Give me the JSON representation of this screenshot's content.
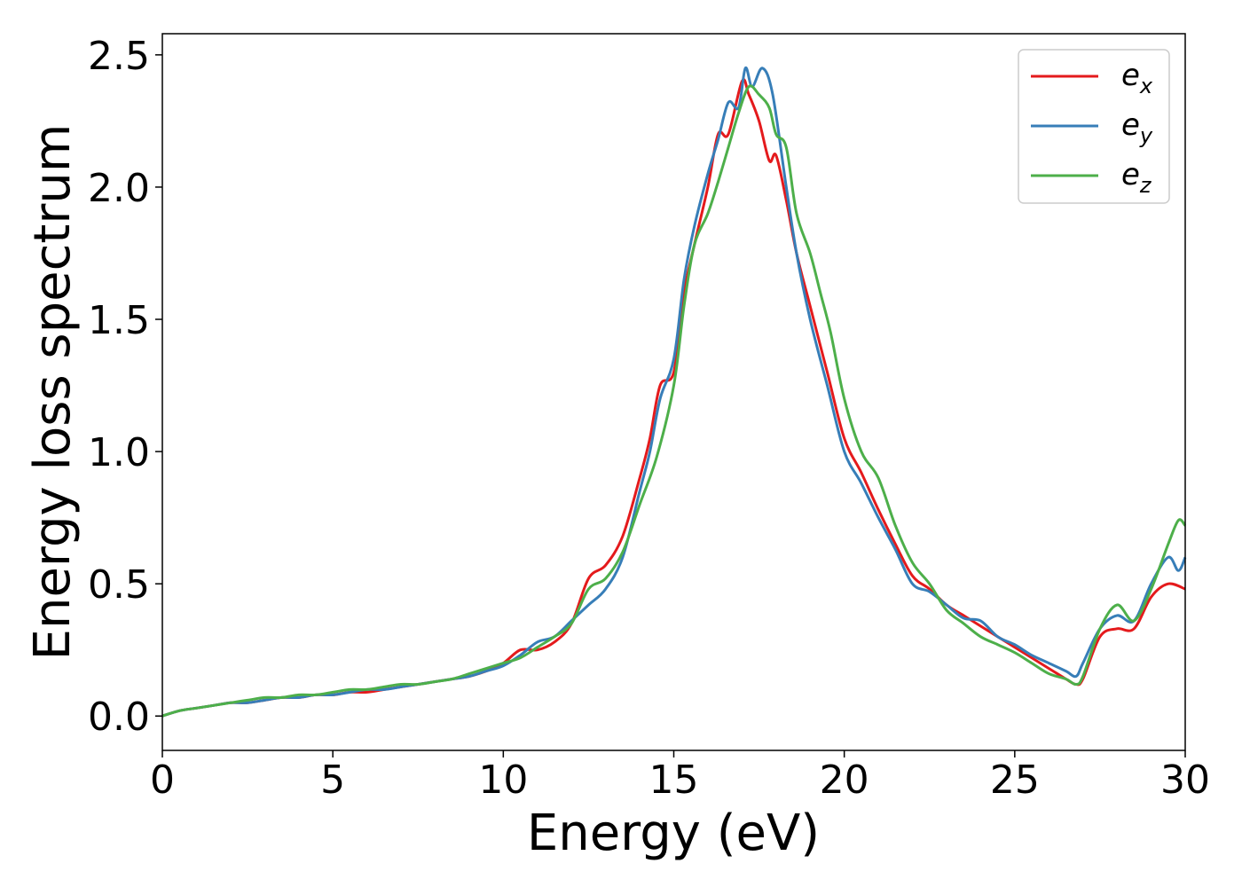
{
  "chart_data": {
    "type": "line",
    "title": "",
    "xlabel": "Energy (eV)",
    "ylabel": "Energy loss spectrum",
    "xlim": [
      0,
      30
    ],
    "ylim": [
      -0.13,
      2.58
    ],
    "xticks": [
      "0",
      "5",
      "10",
      "15",
      "20",
      "25",
      "30"
    ],
    "yticks": [
      "0.0",
      "0.5",
      "1.0",
      "1.5",
      "2.0",
      "2.5"
    ],
    "grid": false,
    "legend_position": "top-right",
    "series": [
      {
        "name": "e",
        "subscript": "x",
        "color": "#e41a1c",
        "x": [
          0,
          0.5,
          1,
          1.5,
          2,
          2.5,
          3,
          3.5,
          4,
          4.5,
          5,
          5.5,
          6,
          6.5,
          7,
          7.5,
          8,
          8.5,
          9,
          9.5,
          10,
          10.5,
          11,
          11.5,
          12,
          12.5,
          13,
          13.5,
          14,
          14.3,
          14.6,
          15,
          15.3,
          15.6,
          16,
          16.3,
          16.6,
          17,
          17.2,
          17.5,
          17.8,
          18,
          18.3,
          18.6,
          19,
          19.5,
          20,
          20.5,
          21,
          21.5,
          22,
          22.5,
          23,
          23.5,
          24,
          24.5,
          25,
          25.5,
          26,
          26.5,
          26.8,
          27,
          27.5,
          28,
          28.5,
          29,
          29.5,
          30
        ],
        "y": [
          0,
          0.02,
          0.03,
          0.04,
          0.05,
          0.05,
          0.06,
          0.07,
          0.07,
          0.08,
          0.08,
          0.09,
          0.09,
          0.1,
          0.11,
          0.12,
          0.13,
          0.14,
          0.15,
          0.17,
          0.2,
          0.25,
          0.25,
          0.28,
          0.35,
          0.52,
          0.57,
          0.68,
          0.9,
          1.05,
          1.25,
          1.3,
          1.6,
          1.78,
          2.0,
          2.2,
          2.2,
          2.4,
          2.35,
          2.25,
          2.1,
          2.12,
          1.95,
          1.75,
          1.55,
          1.3,
          1.05,
          0.92,
          0.78,
          0.65,
          0.53,
          0.48,
          0.42,
          0.38,
          0.34,
          0.3,
          0.26,
          0.22,
          0.18,
          0.14,
          0.12,
          0.14,
          0.3,
          0.33,
          0.33,
          0.45,
          0.5,
          0.48
        ]
      },
      {
        "name": "e",
        "subscript": "y",
        "color": "#377eb8",
        "x": [
          0,
          0.5,
          1,
          1.5,
          2,
          2.5,
          3,
          3.5,
          4,
          4.5,
          5,
          5.5,
          6,
          6.5,
          7,
          7.5,
          8,
          8.5,
          9,
          9.5,
          10,
          10.5,
          11,
          11.5,
          12,
          12.5,
          13,
          13.5,
          14,
          14.3,
          14.6,
          15,
          15.3,
          15.6,
          16,
          16.3,
          16.6,
          16.9,
          17.1,
          17.3,
          17.6,
          17.9,
          18.3,
          18.6,
          19,
          19.5,
          20,
          20.5,
          21,
          21.5,
          22,
          22.5,
          23,
          23.5,
          24,
          24.5,
          25,
          25.5,
          26,
          26.5,
          26.8,
          27,
          27.5,
          28,
          28.5,
          29,
          29.5,
          29.8,
          30
        ],
        "y": [
          0,
          0.02,
          0.03,
          0.04,
          0.05,
          0.05,
          0.06,
          0.07,
          0.07,
          0.08,
          0.08,
          0.09,
          0.1,
          0.1,
          0.11,
          0.12,
          0.13,
          0.14,
          0.15,
          0.17,
          0.19,
          0.23,
          0.28,
          0.3,
          0.36,
          0.42,
          0.48,
          0.6,
          0.85,
          1.0,
          1.2,
          1.35,
          1.65,
          1.85,
          2.05,
          2.18,
          2.32,
          2.3,
          2.45,
          2.38,
          2.45,
          2.35,
          2.0,
          1.75,
          1.5,
          1.25,
          1.0,
          0.88,
          0.75,
          0.63,
          0.5,
          0.47,
          0.42,
          0.37,
          0.36,
          0.3,
          0.27,
          0.23,
          0.2,
          0.17,
          0.15,
          0.2,
          0.33,
          0.38,
          0.36,
          0.5,
          0.6,
          0.55,
          0.6
        ]
      },
      {
        "name": "e",
        "subscript": "z",
        "color": "#4daf4a",
        "x": [
          0,
          0.5,
          1,
          1.5,
          2,
          2.5,
          3,
          3.5,
          4,
          4.5,
          5,
          5.5,
          6,
          6.5,
          7,
          7.5,
          8,
          8.5,
          9,
          9.5,
          10,
          10.5,
          11,
          11.5,
          12,
          12.5,
          13,
          13.5,
          14,
          14.5,
          15,
          15.3,
          15.6,
          16,
          16.3,
          16.6,
          16.9,
          17.2,
          17.5,
          17.8,
          18,
          18.3,
          18.6,
          19,
          19.3,
          19.6,
          20,
          20.5,
          21,
          21.5,
          22,
          22.5,
          23,
          23.5,
          24,
          24.5,
          25,
          25.5,
          26,
          26.5,
          26.8,
          27,
          27.5,
          28,
          28.5,
          29,
          29.5,
          29.8,
          30
        ],
        "y": [
          0,
          0.02,
          0.03,
          0.04,
          0.05,
          0.06,
          0.07,
          0.07,
          0.08,
          0.08,
          0.09,
          0.1,
          0.1,
          0.11,
          0.12,
          0.12,
          0.13,
          0.14,
          0.16,
          0.18,
          0.2,
          0.22,
          0.26,
          0.3,
          0.35,
          0.48,
          0.52,
          0.62,
          0.8,
          0.98,
          1.25,
          1.55,
          1.78,
          1.9,
          2.02,
          2.15,
          2.28,
          2.38,
          2.35,
          2.3,
          2.2,
          2.15,
          1.9,
          1.75,
          1.6,
          1.45,
          1.2,
          1.0,
          0.9,
          0.72,
          0.58,
          0.5,
          0.4,
          0.35,
          0.3,
          0.27,
          0.24,
          0.2,
          0.16,
          0.14,
          0.12,
          0.15,
          0.33,
          0.42,
          0.36,
          0.48,
          0.65,
          0.74,
          0.72
        ]
      }
    ]
  }
}
